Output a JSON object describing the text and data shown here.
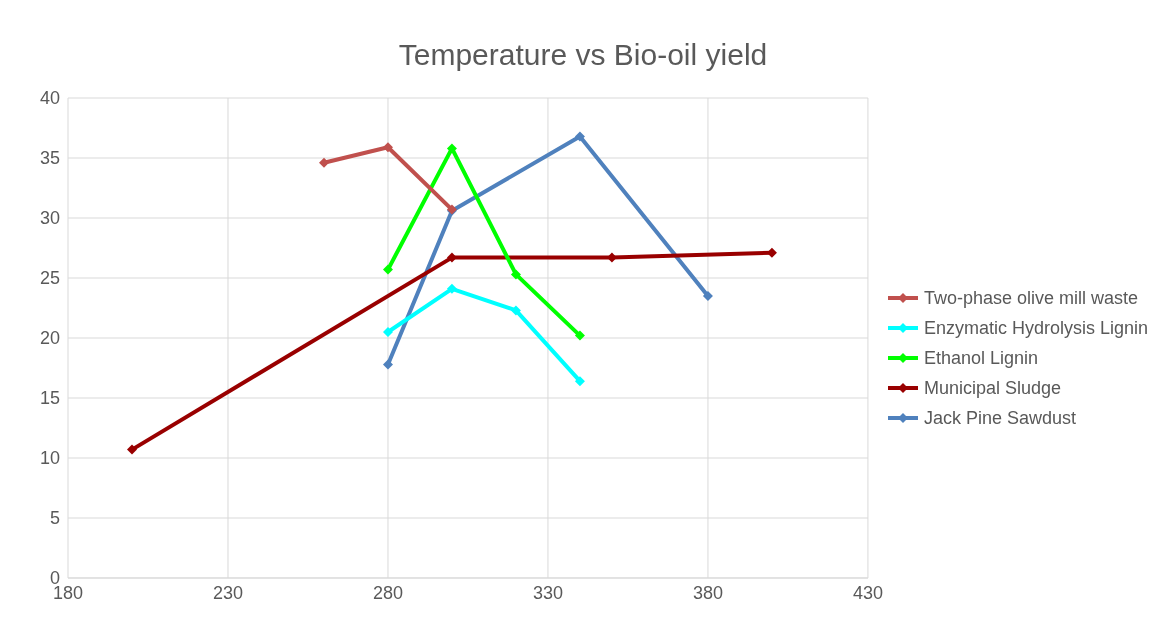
{
  "chart_data": {
    "type": "line",
    "title": "Temperature vs Bio-oil yield",
    "xlim": [
      180,
      430
    ],
    "xticks": [
      180,
      230,
      280,
      330,
      380,
      430
    ],
    "ylim": [
      0,
      40
    ],
    "yticks": [
      0,
      5,
      10,
      15,
      20,
      25,
      30,
      35,
      40
    ],
    "grid": true,
    "legend": "right",
    "marker": "diamond",
    "line_style": "solid",
    "series": [
      {
        "name": "Two-phase olive mill waste",
        "color": "#c0504d",
        "x": [
          260,
          280,
          300
        ],
        "values": [
          34.6,
          35.9,
          30.7
        ]
      },
      {
        "name": "Enzymatic Hydrolysis Lignin",
        "color": "#00ffff",
        "x": [
          280,
          300,
          320,
          340
        ],
        "values": [
          20.5,
          24.1,
          22.3,
          16.4
        ]
      },
      {
        "name": "Ethanol Lignin",
        "color": "#00ff00",
        "x": [
          280,
          300,
          320,
          340
        ],
        "values": [
          25.7,
          35.8,
          25.3,
          20.2
        ]
      },
      {
        "name": "Municipal Sludge",
        "color": "#990000",
        "x": [
          200,
          300,
          350,
          400
        ],
        "values": [
          10.7,
          26.7,
          26.7,
          27.1
        ]
      },
      {
        "name": "Jack Pine Sawdust",
        "color": "#4f81bd",
        "x": [
          280,
          300,
          340,
          380
        ],
        "values": [
          17.8,
          30.6,
          36.8,
          23.5
        ]
      }
    ]
  }
}
